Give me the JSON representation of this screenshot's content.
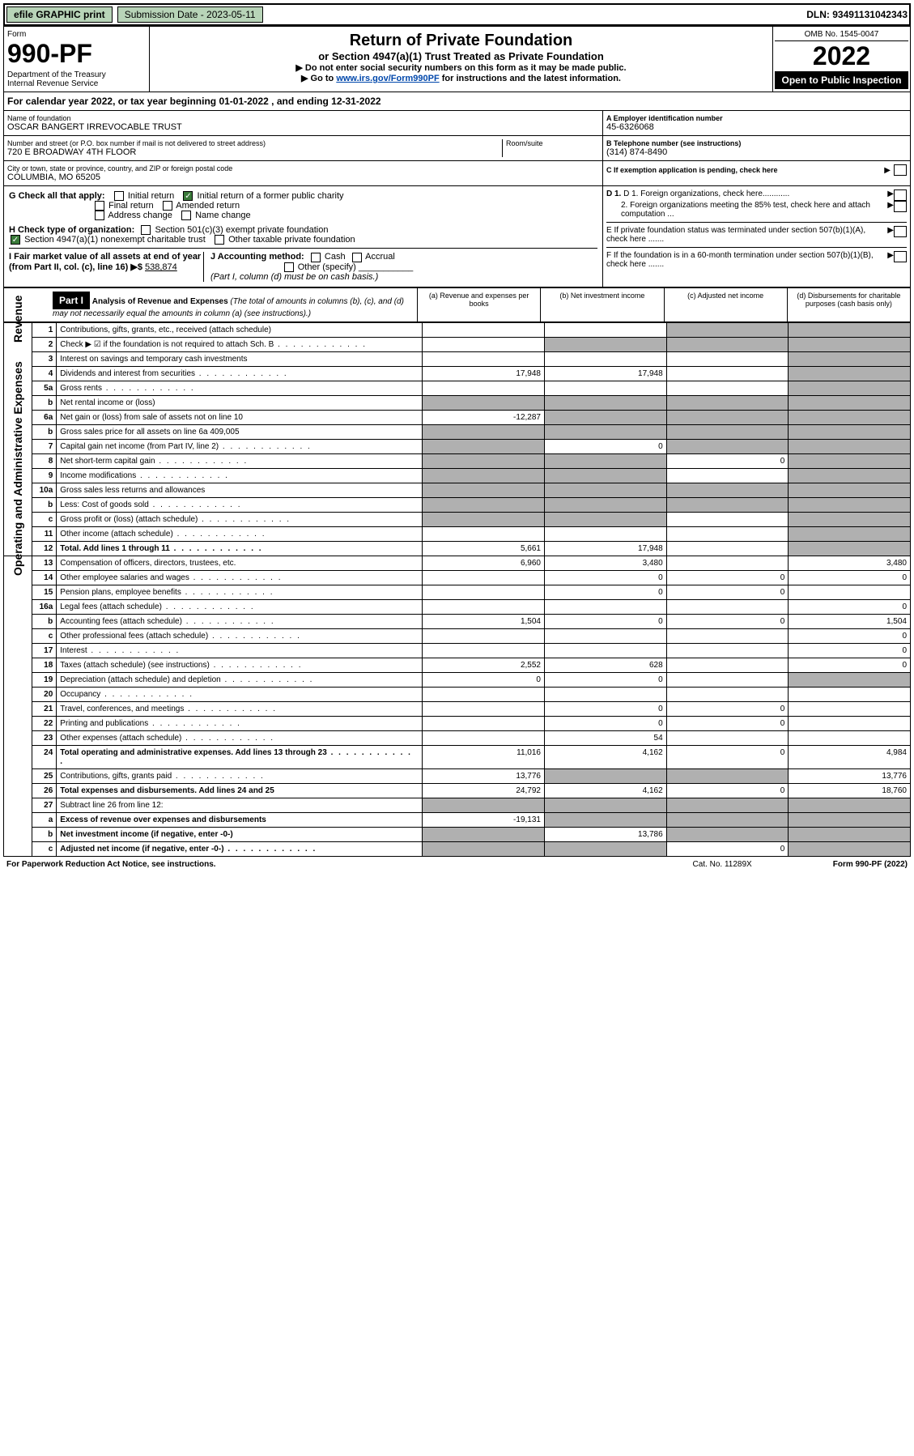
{
  "topbar": {
    "efile": "efile GRAPHIC print",
    "sub_label": "Submission Date - 2023-05-11",
    "dln": "DLN: 93491131042343"
  },
  "header": {
    "form_label": "Form",
    "form_no": "990-PF",
    "dept": "Department of the Treasury\nInternal Revenue Service",
    "title": "Return of Private Foundation",
    "subtitle": "or Section 4947(a)(1) Trust Treated as Private Foundation",
    "note1": "▶ Do not enter social security numbers on this form as it may be made public.",
    "note2_pre": "▶ Go to ",
    "note2_link": "www.irs.gov/Form990PF",
    "note2_post": " for instructions and the latest information.",
    "omb": "OMB No. 1545-0047",
    "year": "2022",
    "open": "Open to Public Inspection"
  },
  "cal_year": "For calendar year 2022, or tax year beginning 01-01-2022            , and ending 12-31-2022",
  "foundation": {
    "name_lbl": "Name of foundation",
    "name": "OSCAR BANGERT IRREVOCABLE TRUST",
    "addr_lbl": "Number and street (or P.O. box number if mail is not delivered to street address)",
    "addr": "720 E BROADWAY 4TH FLOOR",
    "room_lbl": "Room/suite",
    "city_lbl": "City or town, state or province, country, and ZIP or foreign postal code",
    "city": "COLUMBIA, MO  65205",
    "ein_lbl": "A Employer identification number",
    "ein": "45-6326068",
    "tel_lbl": "B Telephone number (see instructions)",
    "tel": "(314) 874-8490",
    "c_lbl": "C If exemption application is pending, check here"
  },
  "checks": {
    "g_lbl": "G Check all that apply:",
    "g1": "Initial return",
    "g2": "Initial return of a former public charity",
    "g3": "Final return",
    "g4": "Amended return",
    "g5": "Address change",
    "g6": "Name change",
    "h_lbl": "H Check type of organization:",
    "h1": "Section 501(c)(3) exempt private foundation",
    "h2": "Section 4947(a)(1) nonexempt charitable trust",
    "h3": "Other taxable private foundation",
    "i_lbl": "I Fair market value of all assets at end of year (from Part II, col. (c), line 16) ▶$",
    "i_val": "538,874",
    "j_lbl": "J Accounting method:",
    "j1": "Cash",
    "j2": "Accrual",
    "j3": "Other (specify)",
    "j_note": "(Part I, column (d) must be on cash basis.)",
    "d1": "D 1. Foreign organizations, check here............",
    "d2": "2. Foreign organizations meeting the 85% test, check here and attach computation ...",
    "e": "E  If private foundation status was terminated under section 507(b)(1)(A), check here .......",
    "f": "F  If the foundation is in a 60-month termination under section 507(b)(1)(B), check here ......."
  },
  "part1": {
    "label": "Part I",
    "title": "Analysis of Revenue and Expenses",
    "title_note": "(The total of amounts in columns (b), (c), and (d) may not necessarily equal the amounts in column (a) (see instructions).)",
    "col_a": "(a)   Revenue and expenses per books",
    "col_b": "(b)   Net investment income",
    "col_c": "(c)   Adjusted net income",
    "col_d": "(d)   Disbursements for charitable purposes (cash basis only)"
  },
  "rotate": {
    "revenue": "Revenue",
    "expenses": "Operating and Administrative Expenses"
  },
  "rows": [
    {
      "n": "1",
      "d": "Contributions, gifts, grants, etc., received (attach schedule)",
      "a": "",
      "b": "",
      "c": "s",
      "dd": "s"
    },
    {
      "n": "2",
      "d": "Check ▶ ☑ if the foundation is not required to attach Sch. B",
      "a": "",
      "b": "s",
      "c": "s",
      "dd": "s",
      "dots": 1
    },
    {
      "n": "3",
      "d": "Interest on savings and temporary cash investments",
      "a": "",
      "b": "",
      "c": "",
      "dd": "s"
    },
    {
      "n": "4",
      "d": "Dividends and interest from securities",
      "a": "17,948",
      "b": "17,948",
      "c": "",
      "dd": "s",
      "dots": 1
    },
    {
      "n": "5a",
      "d": "Gross rents",
      "a": "",
      "b": "",
      "c": "",
      "dd": "s",
      "dots": 1
    },
    {
      "n": "b",
      "d": "Net rental income or (loss)",
      "a": "s",
      "b": "s",
      "c": "s",
      "dd": "s"
    },
    {
      "n": "6a",
      "d": "Net gain or (loss) from sale of assets not on line 10",
      "a": "-12,287",
      "b": "s",
      "c": "s",
      "dd": "s"
    },
    {
      "n": "b",
      "d": "Gross sales price for all assets on line 6a              409,005",
      "a": "s",
      "b": "s",
      "c": "s",
      "dd": "s"
    },
    {
      "n": "7",
      "d": "Capital gain net income (from Part IV, line 2)",
      "a": "s",
      "b": "0",
      "c": "s",
      "dd": "s",
      "dots": 1
    },
    {
      "n": "8",
      "d": "Net short-term capital gain",
      "a": "s",
      "b": "s",
      "c": "0",
      "dd": "s",
      "dots": 1
    },
    {
      "n": "9",
      "d": "Income modifications",
      "a": "s",
      "b": "s",
      "c": "",
      "dd": "s",
      "dots": 1
    },
    {
      "n": "10a",
      "d": "Gross sales less returns and allowances",
      "a": "s",
      "b": "s",
      "c": "s",
      "dd": "s"
    },
    {
      "n": "b",
      "d": "Less: Cost of goods sold",
      "a": "s",
      "b": "s",
      "c": "s",
      "dd": "s",
      "dots": 1
    },
    {
      "n": "c",
      "d": "Gross profit or (loss) (attach schedule)",
      "a": "s",
      "b": "s",
      "c": "",
      "dd": "s",
      "dots": 1
    },
    {
      "n": "11",
      "d": "Other income (attach schedule)",
      "a": "",
      "b": "",
      "c": "",
      "dd": "s",
      "dots": 1
    },
    {
      "n": "12",
      "d": "Total. Add lines 1 through 11",
      "a": "5,661",
      "b": "17,948",
      "c": "",
      "dd": "s",
      "bold": 1,
      "dots": 1
    },
    {
      "n": "13",
      "d": "Compensation of officers, directors, trustees, etc.",
      "a": "6,960",
      "b": "3,480",
      "c": "",
      "dd": "3,480"
    },
    {
      "n": "14",
      "d": "Other employee salaries and wages",
      "a": "",
      "b": "0",
      "c": "0",
      "dd": "0",
      "dots": 1
    },
    {
      "n": "15",
      "d": "Pension plans, employee benefits",
      "a": "",
      "b": "0",
      "c": "0",
      "dd": "",
      "dots": 1
    },
    {
      "n": "16a",
      "d": "Legal fees (attach schedule)",
      "a": "",
      "b": "",
      "c": "",
      "dd": "0",
      "dots": 1
    },
    {
      "n": "b",
      "d": "Accounting fees (attach schedule)",
      "a": "1,504",
      "b": "0",
      "c": "0",
      "dd": "1,504",
      "dots": 1
    },
    {
      "n": "c",
      "d": "Other professional fees (attach schedule)",
      "a": "",
      "b": "",
      "c": "",
      "dd": "0",
      "dots": 1
    },
    {
      "n": "17",
      "d": "Interest",
      "a": "",
      "b": "",
      "c": "",
      "dd": "0",
      "dots": 1
    },
    {
      "n": "18",
      "d": "Taxes (attach schedule) (see instructions)",
      "a": "2,552",
      "b": "628",
      "c": "",
      "dd": "0",
      "dots": 1
    },
    {
      "n": "19",
      "d": "Depreciation (attach schedule) and depletion",
      "a": "0",
      "b": "0",
      "c": "",
      "dd": "s",
      "dots": 1
    },
    {
      "n": "20",
      "d": "Occupancy",
      "a": "",
      "b": "",
      "c": "",
      "dd": "",
      "dots": 1
    },
    {
      "n": "21",
      "d": "Travel, conferences, and meetings",
      "a": "",
      "b": "0",
      "c": "0",
      "dd": "",
      "dots": 1
    },
    {
      "n": "22",
      "d": "Printing and publications",
      "a": "",
      "b": "0",
      "c": "0",
      "dd": "",
      "dots": 1
    },
    {
      "n": "23",
      "d": "Other expenses (attach schedule)",
      "a": "",
      "b": "54",
      "c": "",
      "dd": "",
      "dots": 1
    },
    {
      "n": "24",
      "d": "Total operating and administrative expenses. Add lines 13 through 23",
      "a": "11,016",
      "b": "4,162",
      "c": "0",
      "dd": "4,984",
      "bold": 1,
      "dots": 1
    },
    {
      "n": "25",
      "d": "Contributions, gifts, grants paid",
      "a": "13,776",
      "b": "s",
      "c": "s",
      "dd": "13,776",
      "dots": 1
    },
    {
      "n": "26",
      "d": "Total expenses and disbursements. Add lines 24 and 25",
      "a": "24,792",
      "b": "4,162",
      "c": "0",
      "dd": "18,760",
      "bold": 1
    },
    {
      "n": "27",
      "d": "Subtract line 26 from line 12:",
      "a": "s",
      "b": "s",
      "c": "s",
      "dd": "s"
    },
    {
      "n": "a",
      "d": "Excess of revenue over expenses and disbursements",
      "a": "-19,131",
      "b": "s",
      "c": "s",
      "dd": "s",
      "bold": 1
    },
    {
      "n": "b",
      "d": "Net investment income (if negative, enter -0-)",
      "a": "s",
      "b": "13,786",
      "c": "s",
      "dd": "s",
      "bold": 1
    },
    {
      "n": "c",
      "d": "Adjusted net income (if negative, enter -0-)",
      "a": "s",
      "b": "s",
      "c": "0",
      "dd": "s",
      "bold": 1,
      "dots": 1
    }
  ],
  "footer": {
    "left": "For Paperwork Reduction Act Notice, see instructions.",
    "cat": "Cat. No. 11289X",
    "right": "Form 990-PF (2022)"
  }
}
